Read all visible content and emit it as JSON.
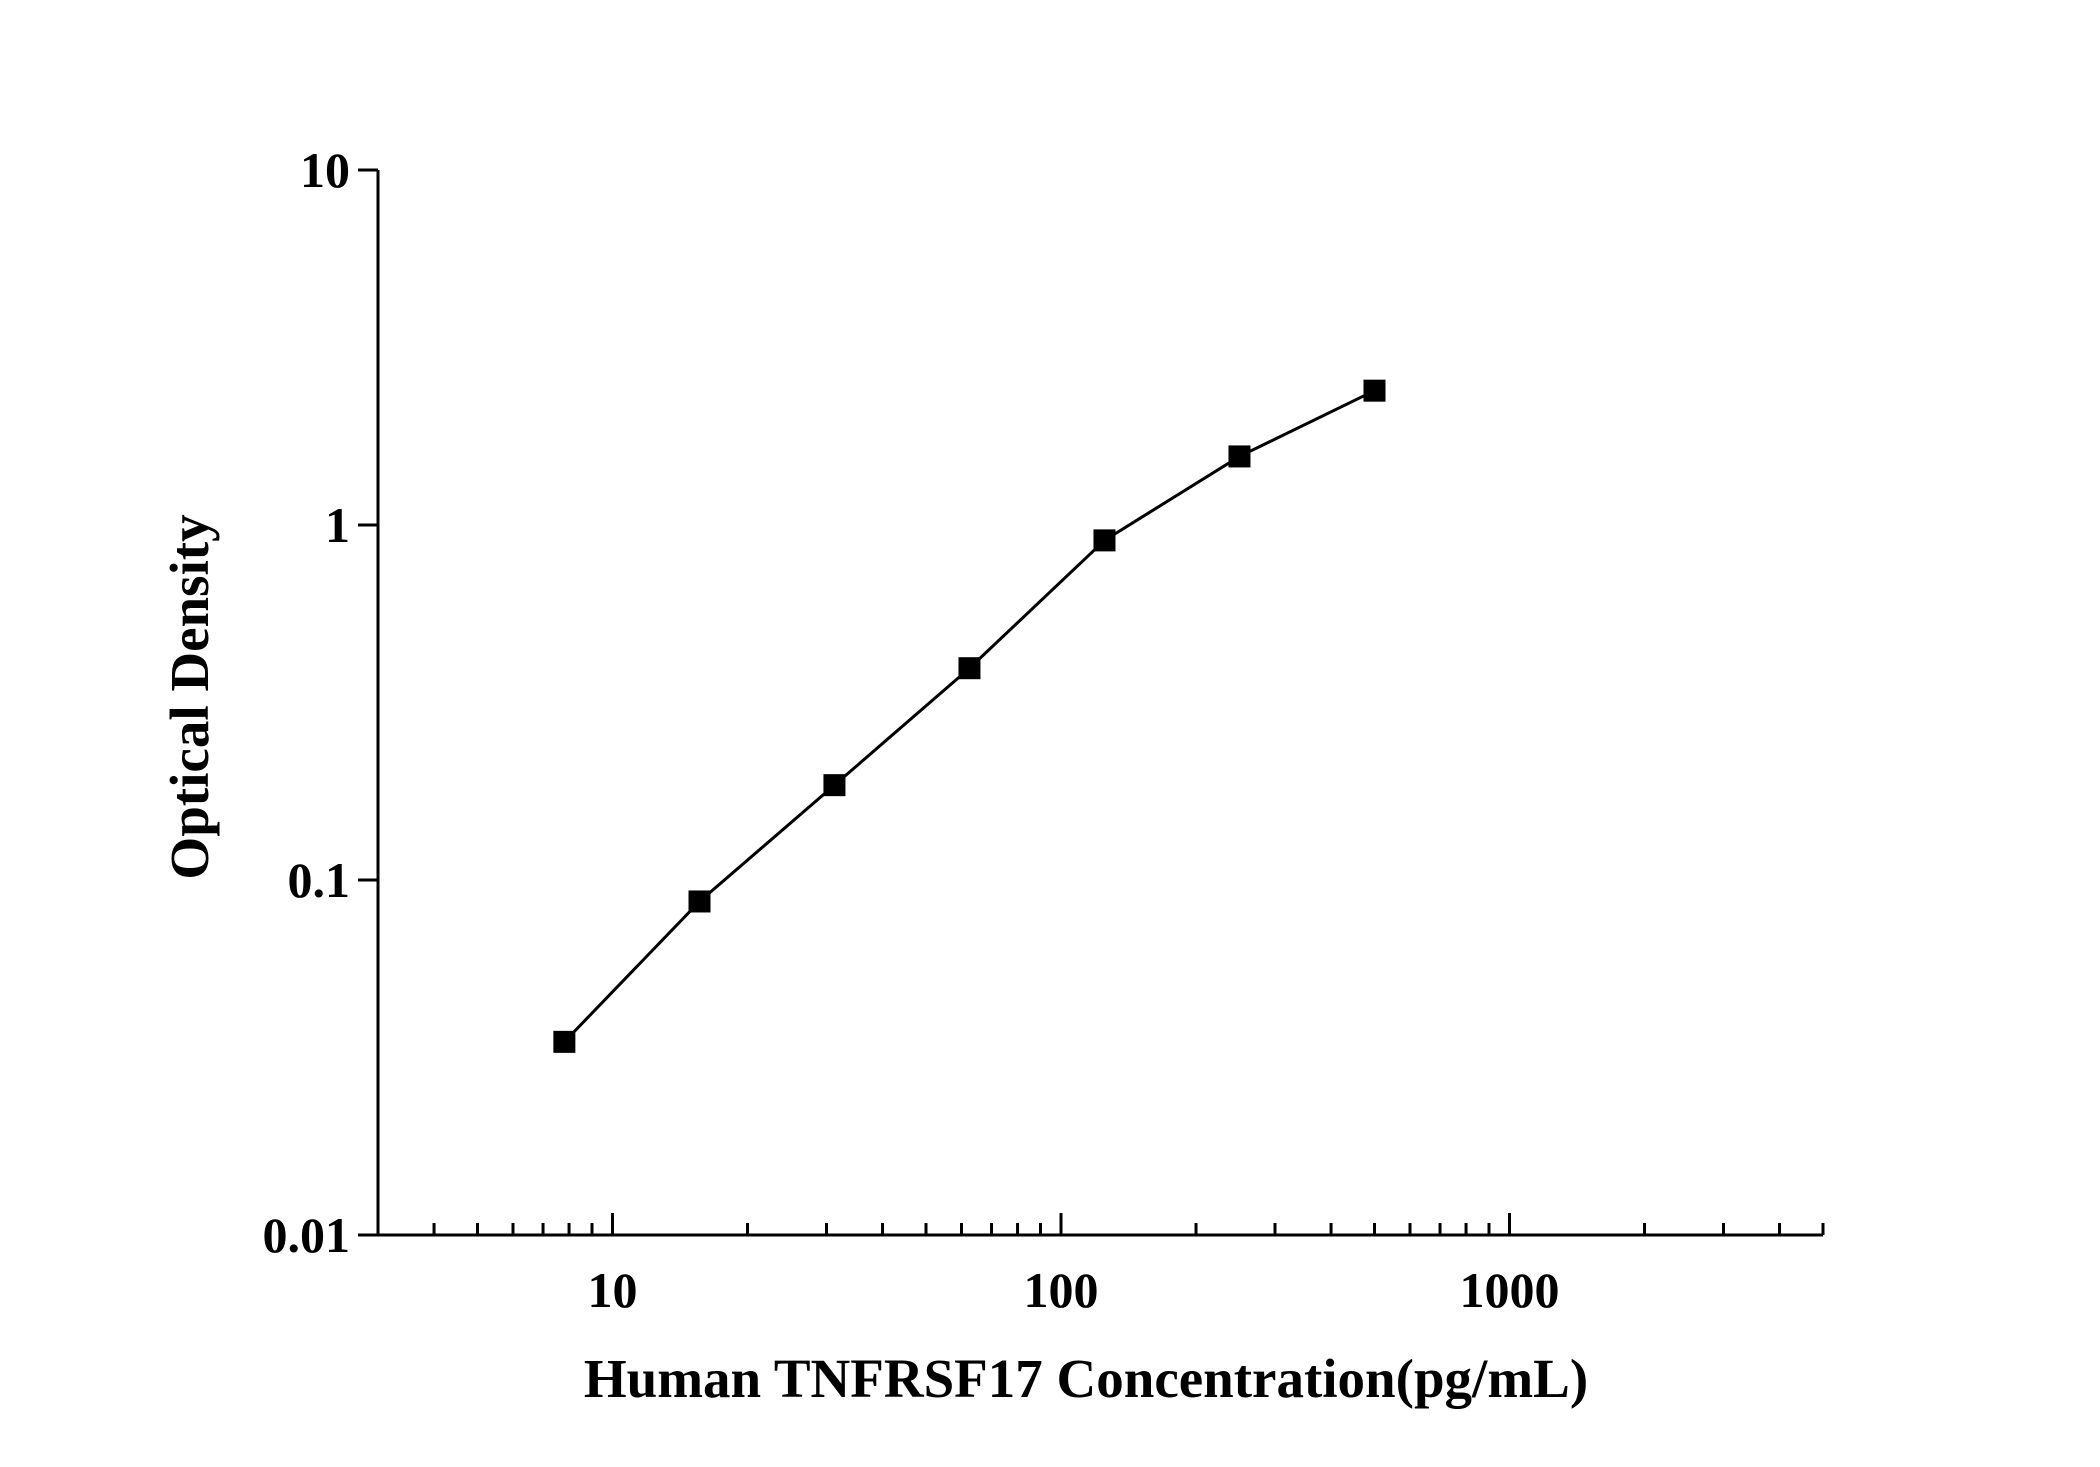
{
  "chart_data": {
    "type": "scatter",
    "title": "",
    "xlabel": "Human TNFRSF17 Concentration(pg/mL)",
    "ylabel": "Optical Density",
    "xscale": "log",
    "yscale": "log",
    "xlim": [
      3,
      5000
    ],
    "ylim": [
      0.01,
      10
    ],
    "grid": false,
    "legend": "none",
    "x_ticks": [
      10,
      100,
      1000
    ],
    "x_tick_labels": [
      "10",
      "100",
      "1000"
    ],
    "y_ticks": [
      0.01,
      0.1,
      1,
      10
    ],
    "y_tick_labels": [
      "0.01",
      "0.1",
      "1",
      "10"
    ],
    "series": [
      {
        "x": [
          7.81,
          15.63,
          31.25,
          62.5,
          125,
          250,
          500
        ],
        "y": [
          0.035,
          0.087,
          0.185,
          0.395,
          0.905,
          1.56,
          2.39
        ],
        "marker": "square",
        "line": "solid",
        "color": "#000000"
      }
    ]
  }
}
